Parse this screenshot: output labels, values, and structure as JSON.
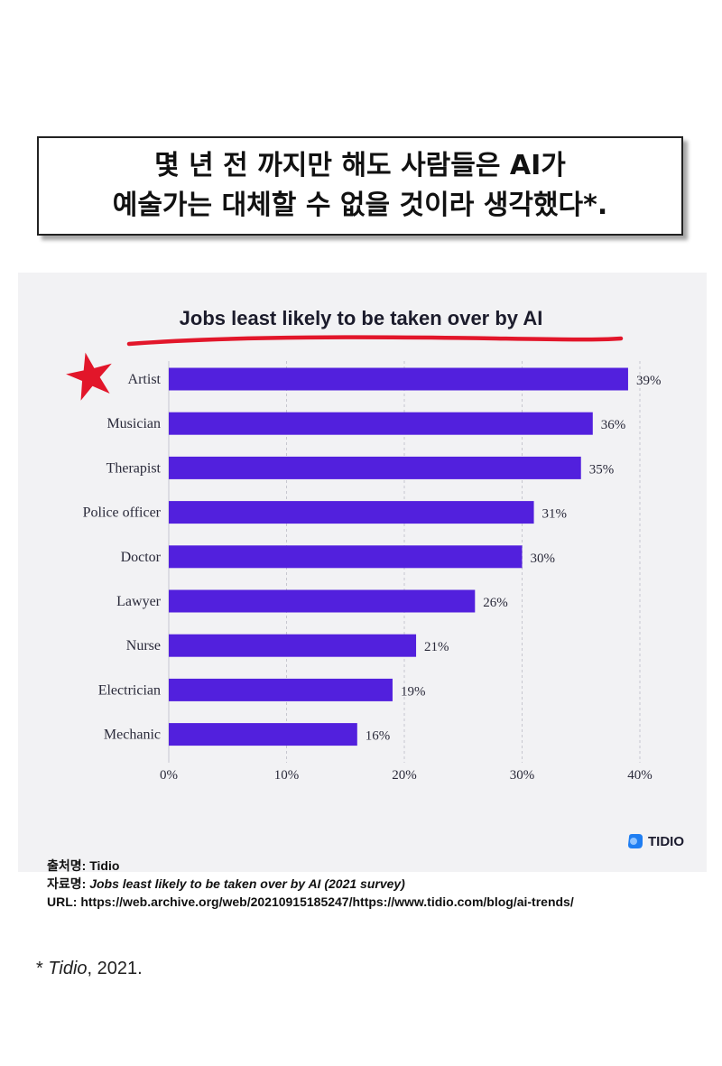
{
  "headline": {
    "line1": "몇 년 전 까지만 해도 사람들은 AI가",
    "line2": "예술가는 대체할 수 없을 것이라 생각했다*."
  },
  "chart_data": {
    "type": "bar",
    "orientation": "horizontal",
    "title": "Jobs least likely to be taken over by AI",
    "categories": [
      "Artist",
      "Musician",
      "Therapist",
      "Police officer",
      "Doctor",
      "Lawyer",
      "Nurse",
      "Electrician",
      "Mechanic"
    ],
    "values": [
      39,
      36,
      35,
      31,
      30,
      26,
      21,
      19,
      16
    ],
    "value_labels": [
      "39%",
      "36%",
      "35%",
      "31%",
      "30%",
      "26%",
      "21%",
      "19%",
      "16%"
    ],
    "xlim": [
      0,
      40
    ],
    "x_ticks": [
      "0%",
      "10%",
      "20%",
      "30%",
      "40%"
    ],
    "grid": "vertical dashed",
    "bar_color": "#5220dd",
    "highlight": {
      "category": "Artist",
      "marker": "red-star-icon",
      "color": "#e2162a"
    },
    "title_underline_color": "#e2162a"
  },
  "brand": {
    "name": "TIDIO",
    "color": "#1f7ef2"
  },
  "credits": {
    "source_label": "출처명:",
    "source_value": "Tidio",
    "title_label": "자료명:",
    "title_value": "Jobs least likely to be taken over by AI (2021 survey)",
    "url_label": "URL:",
    "url_value": "https://web.archive.org/web/20210915185247/https://www.tidio.com/blog/ai-trends/"
  },
  "footnote": {
    "star": "*",
    "name": "Tidio",
    "year": ", 2021."
  }
}
